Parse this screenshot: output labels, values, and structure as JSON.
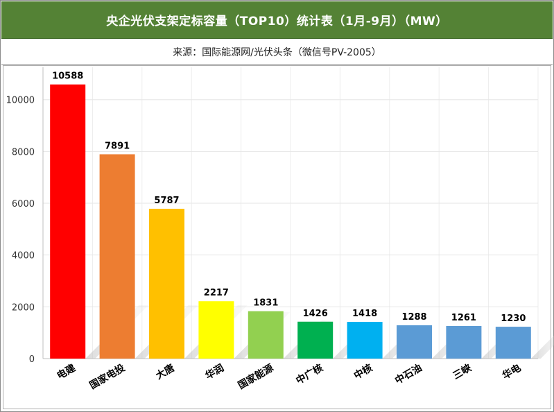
{
  "header": {
    "title": "央企光伏支架定标容量（TOP10）统计表（1月-9月）（MW）",
    "source": "来源：国际能源网/光伏头条（微信号PV-2005）"
  },
  "chart_data": {
    "type": "bar",
    "categories": [
      "电建",
      "国家电投",
      "大唐",
      "华润",
      "国家能源",
      "中广核",
      "中核",
      "中石油",
      "三峡",
      "华电"
    ],
    "values": [
      10588,
      7891,
      5787,
      2217,
      1831,
      1426,
      1418,
      1288,
      1261,
      1230
    ],
    "colors": [
      "#ff0000",
      "#ed7d31",
      "#ffc000",
      "#ffff00",
      "#92d050",
      "#00b050",
      "#00b0f0",
      "#5b9bd5",
      "#5b9bd5",
      "#5b9bd5"
    ],
    "ylim": [
      0,
      10000
    ],
    "yticks": [
      0,
      2000,
      4000,
      6000,
      8000,
      10000
    ],
    "grid": true,
    "legend": "none"
  }
}
